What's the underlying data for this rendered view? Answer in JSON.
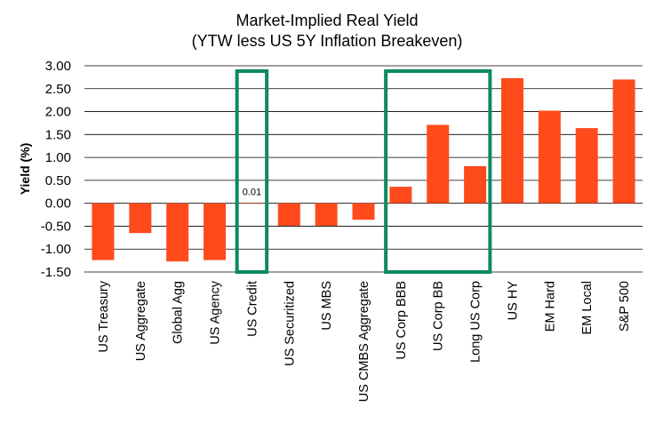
{
  "chart_data": {
    "type": "bar",
    "title": "Market-Implied Real Yield",
    "subtitle": "(YTW less US 5Y Inflation Breakeven)",
    "xlabel": "",
    "ylabel": "Yield (%)",
    "ylim": [
      -1.5,
      3.0
    ],
    "yticks": [
      "3.00",
      "2.50",
      "2.00",
      "1.50",
      "1.00",
      "0.50",
      "0.00",
      "-0.50",
      "-1.00",
      "-1.50"
    ],
    "ytick_values": [
      3.0,
      2.5,
      2.0,
      1.5,
      1.0,
      0.5,
      0.0,
      -0.5,
      -1.0,
      -1.5
    ],
    "grid": true,
    "legend": "none",
    "categories": [
      "US Treasury",
      "US Aggregate",
      "Global Agg",
      "US Agency",
      "US Credit",
      "US Securitized",
      "US MBS",
      "US CMBS Aggregate",
      "US Corp BBB",
      "US Corp BB",
      "Long US Corp",
      "US HY",
      "EM Hard",
      "EM Local",
      "S&P 500"
    ],
    "values": [
      -1.24,
      -0.65,
      -1.27,
      -1.24,
      0.01,
      -0.49,
      -0.49,
      -0.36,
      0.36,
      1.71,
      0.81,
      2.73,
      2.02,
      1.64,
      2.7
    ],
    "annotations": [
      {
        "category": "US Credit",
        "text": "0.01"
      }
    ],
    "highlight_groups": [
      {
        "from": "US Credit",
        "to": "US Credit"
      },
      {
        "from": "US Corp BBB",
        "to": "Long US Corp"
      }
    ],
    "colors": {
      "bar": "#FF4A1C",
      "highlight_box": "#0E8A5F",
      "grid": "#000000",
      "text": "#000000"
    }
  }
}
